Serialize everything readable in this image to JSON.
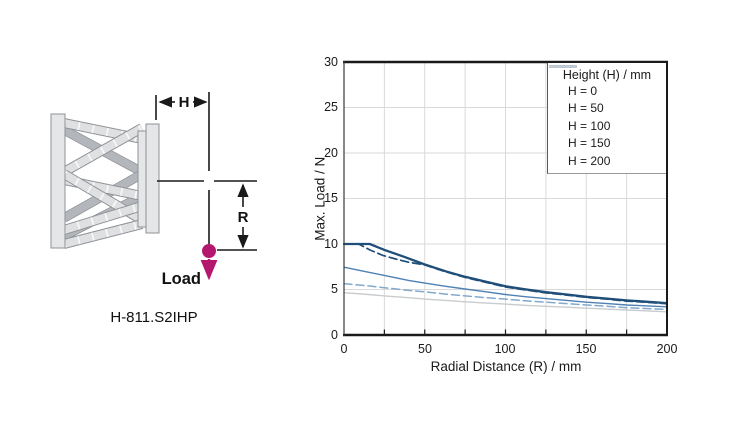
{
  "diagram": {
    "h_label": "H",
    "r_label": "R",
    "load_label": "Load",
    "caption": "H-811.S2IHP",
    "load_color": "#b4176e"
  },
  "chart_data": {
    "type": "line",
    "title": "",
    "xlabel": "Radial Distance (R) / mm",
    "ylabel": "Max. Load / N",
    "xlim": [
      0,
      200
    ],
    "ylim": [
      0,
      30
    ],
    "xticks": [
      0,
      50,
      100,
      150,
      200
    ],
    "yticks": [
      0,
      5,
      10,
      15,
      20,
      25,
      30
    ],
    "grid": {
      "x_step": 25,
      "y_step": 5,
      "color": "#d9d9d9"
    },
    "legend": {
      "title": "Height (H) / mm",
      "position": "top-right"
    },
    "series": [
      {
        "label": "H = 0",
        "color": "#1f4e79",
        "style": "solid",
        "width": 2.3,
        "points": [
          [
            0,
            10
          ],
          [
            16,
            10
          ],
          [
            25,
            9.35
          ],
          [
            37,
            8.6
          ],
          [
            50,
            7.75
          ],
          [
            63,
            7.0
          ],
          [
            75,
            6.4
          ],
          [
            88,
            5.85
          ],
          [
            100,
            5.35
          ],
          [
            113,
            5.0
          ],
          [
            125,
            4.7
          ],
          [
            138,
            4.45
          ],
          [
            150,
            4.2
          ],
          [
            163,
            4.0
          ],
          [
            175,
            3.8
          ],
          [
            188,
            3.65
          ],
          [
            200,
            3.5
          ]
        ]
      },
      {
        "label": "H = 50",
        "color": "#1f4e79",
        "style": "dashed",
        "width": 1.7,
        "points": [
          [
            0,
            10
          ],
          [
            9,
            10
          ],
          [
            16,
            9.35
          ],
          [
            24,
            8.75
          ],
          [
            32,
            8.35
          ],
          [
            40,
            8.0
          ],
          [
            50,
            7.7
          ],
          [
            63,
            6.95
          ],
          [
            75,
            6.33
          ],
          [
            88,
            5.78
          ],
          [
            100,
            5.28
          ],
          [
            113,
            4.93
          ],
          [
            125,
            4.63
          ],
          [
            138,
            4.38
          ],
          [
            150,
            4.13
          ],
          [
            163,
            3.93
          ],
          [
            175,
            3.73
          ],
          [
            188,
            3.58
          ],
          [
            200,
            3.43
          ]
        ]
      },
      {
        "label": "H = 100",
        "color": "#4f81b4",
        "style": "solid",
        "width": 1.4,
        "points": [
          [
            0,
            7.45
          ],
          [
            15,
            6.9
          ],
          [
            25,
            6.55
          ],
          [
            40,
            6.0
          ],
          [
            50,
            5.7
          ],
          [
            63,
            5.35
          ],
          [
            75,
            5.05
          ],
          [
            88,
            4.75
          ],
          [
            100,
            4.45
          ],
          [
            113,
            4.2
          ],
          [
            125,
            4.0
          ],
          [
            138,
            3.8
          ],
          [
            150,
            3.6
          ],
          [
            163,
            3.45
          ],
          [
            175,
            3.3
          ],
          [
            188,
            3.2
          ],
          [
            200,
            3.1
          ]
        ]
      },
      {
        "label": "H = 150",
        "color": "#82a9cd",
        "style": "dashed",
        "width": 1.5,
        "points": [
          [
            0,
            5.65
          ],
          [
            15,
            5.4
          ],
          [
            25,
            5.2
          ],
          [
            40,
            4.9
          ],
          [
            50,
            4.75
          ],
          [
            63,
            4.5
          ],
          [
            75,
            4.3
          ],
          [
            88,
            4.1
          ],
          [
            100,
            3.95
          ],
          [
            113,
            3.75
          ],
          [
            125,
            3.6
          ],
          [
            138,
            3.45
          ],
          [
            150,
            3.3
          ],
          [
            163,
            3.15
          ],
          [
            175,
            3.0
          ],
          [
            188,
            2.9
          ],
          [
            200,
            2.8
          ]
        ]
      },
      {
        "label": "H = 200",
        "color": "#c8cccf",
        "style": "solid",
        "width": 1.4,
        "points": [
          [
            0,
            4.65
          ],
          [
            15,
            4.45
          ],
          [
            25,
            4.3
          ],
          [
            40,
            4.1
          ],
          [
            50,
            3.95
          ],
          [
            63,
            3.8
          ],
          [
            75,
            3.65
          ],
          [
            88,
            3.5
          ],
          [
            100,
            3.4
          ],
          [
            113,
            3.25
          ],
          [
            125,
            3.15
          ],
          [
            138,
            3.05
          ],
          [
            150,
            2.95
          ],
          [
            163,
            2.85
          ],
          [
            175,
            2.75
          ],
          [
            188,
            2.65
          ],
          [
            200,
            2.55
          ]
        ]
      }
    ]
  }
}
